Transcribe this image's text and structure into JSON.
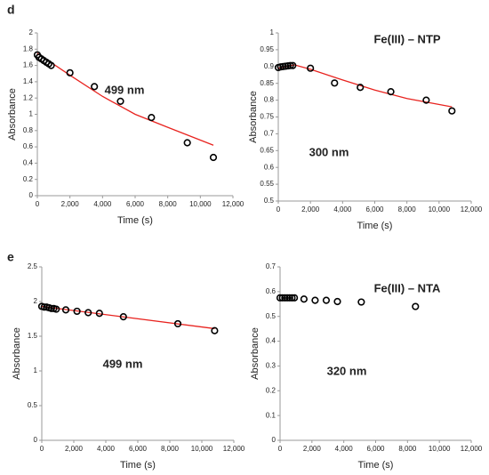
{
  "chart_data": [
    {
      "type": "scatter",
      "panel_label": "d",
      "xlabel": "Time (s)",
      "ylabel": "Absorbance",
      "annotations": [
        "499 nm"
      ],
      "xlim": [
        0,
        12000
      ],
      "xticks": [
        0,
        {
          "value": 2000,
          "label": "2,000"
        },
        {
          "value": 4000,
          "label": "4,000"
        },
        {
          "value": 6000,
          "label": "6,000"
        },
        {
          "value": 8000,
          "label": "8,000"
        },
        {
          "value": 10000,
          "label": "10,000"
        },
        {
          "value": 12000,
          "label": "12,000"
        }
      ],
      "ylim": [
        0,
        2
      ],
      "yticks": [
        0,
        0.2,
        0.4,
        0.6,
        0.8,
        1,
        1.2,
        1.4,
        1.6,
        1.8,
        2
      ],
      "series": [
        {
          "type": "scatter",
          "color": "#000000",
          "x": [
            0,
            100,
            250,
            400,
            550,
            700,
            850,
            2000,
            3500,
            5100,
            7000,
            9200,
            10800
          ],
          "values": [
            1.73,
            1.7,
            1.68,
            1.66,
            1.64,
            1.62,
            1.6,
            1.51,
            1.34,
            1.16,
            0.96,
            0.65,
            0.47
          ]
        },
        {
          "type": "line",
          "color": "#e8231f",
          "x": [
            0,
            2000,
            4000,
            6000,
            8000,
            10800
          ],
          "values": [
            1.75,
            1.48,
            1.22,
            1.0,
            0.84,
            0.62
          ]
        }
      ]
    },
    {
      "type": "scatter",
      "xlabel": "Time (s)",
      "ylabel": "Absorbance",
      "annotations": [
        "Fe(III) – NTP",
        "300 nm"
      ],
      "xlim": [
        0,
        12000
      ],
      "xticks": [
        0,
        {
          "value": 2000,
          "label": "2,000"
        },
        {
          "value": 4000,
          "label": "4,000"
        },
        {
          "value": 6000,
          "label": "6,000"
        },
        {
          "value": 8000,
          "label": "8,000"
        },
        {
          "value": 10000,
          "label": "10,000"
        },
        {
          "value": 12000,
          "label": "12,000"
        }
      ],
      "ylim": [
        0.5,
        1
      ],
      "yticks": [
        0.5,
        0.55,
        0.6,
        0.65,
        0.7,
        0.75,
        0.8,
        0.85,
        0.9,
        0.95,
        1
      ],
      "series": [
        {
          "type": "scatter",
          "color": "#000000",
          "x": [
            0,
            150,
            300,
            450,
            600,
            750,
            900,
            2000,
            3500,
            5100,
            7000,
            9200,
            10800
          ],
          "values": [
            0.897,
            0.899,
            0.9,
            0.901,
            0.902,
            0.903,
            0.903,
            0.895,
            0.851,
            0.838,
            0.825,
            0.8,
            0.768
          ]
        },
        {
          "type": "line",
          "color": "#e8231f",
          "x": [
            0,
            1000,
            2000,
            4000,
            6000,
            8000,
            10800
          ],
          "values": [
            0.895,
            0.905,
            0.892,
            0.86,
            0.83,
            0.805,
            0.78
          ]
        }
      ]
    },
    {
      "type": "scatter",
      "panel_label": "e",
      "xlabel": "Time (s)",
      "ylabel": "Absorbance",
      "annotations": [
        "499 nm"
      ],
      "xlim": [
        0,
        12000
      ],
      "xticks": [
        0,
        {
          "value": 2000,
          "label": "2,000"
        },
        {
          "value": 4000,
          "label": "4,000"
        },
        {
          "value": 6000,
          "label": "6,000"
        },
        {
          "value": 8000,
          "label": "8,000"
        },
        {
          "value": 10000,
          "label": "10,000"
        },
        {
          "value": 12000,
          "label": "12,000"
        }
      ],
      "ylim": [
        0,
        2.5
      ],
      "yticks": [
        0,
        0.5,
        1,
        1.5,
        2,
        2.5
      ],
      "series": [
        {
          "type": "scatter",
          "color": "#000000",
          "x": [
            0,
            150,
            300,
            450,
            600,
            750,
            900,
            1500,
            2200,
            2900,
            3600,
            5100,
            8500,
            10800
          ],
          "values": [
            1.93,
            1.92,
            1.92,
            1.91,
            1.9,
            1.9,
            1.89,
            1.88,
            1.86,
            1.84,
            1.83,
            1.78,
            1.68,
            1.58
          ]
        },
        {
          "type": "line",
          "color": "#e8231f",
          "x": [
            0,
            10800
          ],
          "values": [
            1.93,
            1.61
          ]
        }
      ]
    },
    {
      "type": "scatter",
      "xlabel": "Time (s)",
      "ylabel": "Absorbance",
      "annotations": [
        "Fe(III) – NTA",
        "320 nm"
      ],
      "xlim": [
        0,
        12000
      ],
      "xticks": [
        0,
        {
          "value": 2000,
          "label": "2,000"
        },
        {
          "value": 4000,
          "label": "4,000"
        },
        {
          "value": 6000,
          "label": "6,000"
        },
        {
          "value": 8000,
          "label": "8,000"
        },
        {
          "value": 10000,
          "label": "10,000"
        },
        {
          "value": 12000,
          "label": "12,000"
        }
      ],
      "ylim": [
        0,
        0.7
      ],
      "yticks": [
        0,
        0.1,
        0.2,
        0.3,
        0.4,
        0.5,
        0.6,
        0.7
      ],
      "series": [
        {
          "type": "scatter",
          "color": "#000000",
          "x": [
            0,
            150,
            300,
            450,
            600,
            750,
            900,
            1500,
            2200,
            2900,
            3600,
            5100,
            8500
          ],
          "values": [
            0.575,
            0.575,
            0.575,
            0.575,
            0.575,
            0.575,
            0.575,
            0.57,
            0.565,
            0.565,
            0.56,
            0.558,
            0.54
          ]
        }
      ]
    }
  ]
}
